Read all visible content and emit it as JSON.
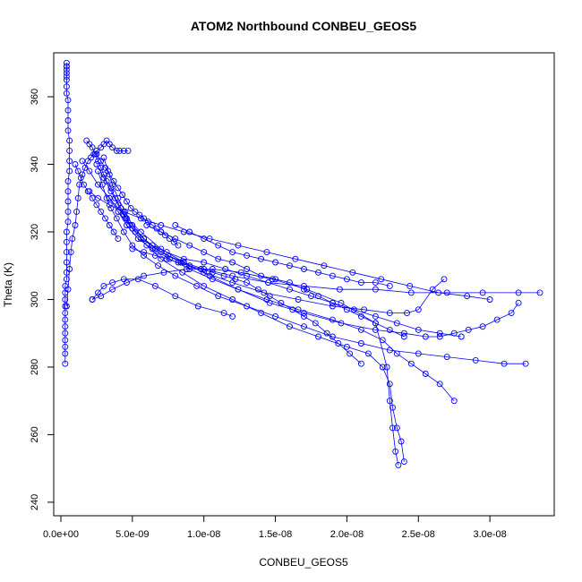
{
  "chart_data": {
    "type": "line",
    "title": "ATOM2 Northbound CONBEU_GEOS5",
    "xlabel": "CONBEU_GEOS5",
    "ylabel": "Theta (K)",
    "xlim": [
      -5e-10,
      3.45e-08
    ],
    "ylim": [
      236,
      373
    ],
    "x_ticks": [
      {
        "value": 0,
        "label": "0.0e+00"
      },
      {
        "value": 5e-09,
        "label": "5.0e-09"
      },
      {
        "value": 1e-08,
        "label": "1.0e-08"
      },
      {
        "value": 1.5e-08,
        "label": "1.5e-08"
      },
      {
        "value": 2e-08,
        "label": "2.0e-08"
      },
      {
        "value": 2.5e-08,
        "label": "2.5e-08"
      },
      {
        "value": 3e-08,
        "label": "3.0e-08"
      }
    ],
    "y_ticks": [
      {
        "value": 240,
        "label": "240"
      },
      {
        "value": 260,
        "label": "260"
      },
      {
        "value": 280,
        "label": "280"
      },
      {
        "value": 300,
        "label": "300"
      },
      {
        "value": 320,
        "label": "320"
      },
      {
        "value": 340,
        "label": "340"
      },
      {
        "value": 360,
        "label": "360"
      }
    ],
    "grid": false,
    "legend": "none",
    "color": "#0000ff",
    "marker": "open-circle",
    "series": [
      {
        "x": [
          3e-10,
          3e-10,
          3e-10,
          3e-10,
          3e-10,
          3e-10,
          3e-10,
          3e-10,
          3e-10,
          3e-10,
          3e-10,
          3e-10,
          4e-10,
          4e-10,
          4e-10,
          4e-10,
          4e-10,
          4e-10,
          5e-10,
          5e-10,
          5e-10,
          5e-10,
          5e-10,
          6e-10,
          6e-10,
          6e-10,
          6e-10,
          5e-10,
          5e-10,
          5e-10,
          5e-10,
          4e-10,
          4e-10,
          4e-10,
          4e-10,
          4e-10,
          4e-10,
          4e-10,
          4e-10,
          4e-10
        ],
        "y": [
          281,
          284,
          286,
          288,
          290,
          292,
          294,
          296,
          298,
          300,
          302,
          304,
          306,
          308,
          311,
          314,
          317,
          320,
          323,
          326,
          329,
          332,
          335,
          338,
          341,
          344,
          347,
          350,
          353,
          356,
          359,
          361,
          363,
          365,
          367,
          369,
          370,
          369,
          368,
          366
        ]
      },
      {
        "x": [
          4e-10,
          5e-10,
          6e-10,
          7e-10,
          8e-10,
          1e-09,
          1.1e-09,
          1.2e-09,
          1.3e-09,
          1.5e-09,
          1.7e-09,
          1.9e-09,
          2.1e-09,
          2.3e-09,
          2.5e-09,
          2.8e-09,
          3e-09,
          3.2e-09,
          3.4e-09,
          3.6e-09,
          3.9e-09,
          4.1e-09,
          4.4e-09,
          4.7e-09
        ],
        "y": [
          298,
          303,
          309,
          314,
          318,
          322,
          326,
          330,
          334,
          337,
          339,
          341,
          342,
          343,
          344,
          345,
          346,
          347,
          346,
          345,
          344,
          344,
          344,
          344
        ]
      },
      {
        "x": [
          1.8e-09,
          2e-09,
          2.2e-09,
          2.4e-09,
          2.6e-09,
          2.8e-09,
          3e-09,
          3.2e-09,
          3.5e-09,
          3.8e-09,
          4.2e-09,
          4.6e-09,
          5e-09,
          5.6e-09,
          6.4e-09,
          7.4e-09,
          8.6e-09,
          1e-08,
          1.15e-08,
          1.3e-08,
          1.45e-08,
          1.6e-08,
          1.75e-08,
          1.9e-08,
          2.05e-08,
          2.2e-08,
          2.35e-08,
          2.5e-08,
          2.65e-08,
          2.8e-08
        ],
        "y": [
          347,
          346,
          345,
          343,
          341,
          339,
          337,
          335,
          333,
          330,
          327,
          324,
          321,
          318,
          316,
          314,
          312,
          311,
          309,
          307,
          305,
          303,
          301,
          299,
          297,
          295,
          293,
          291,
          290,
          289
        ]
      },
      {
        "x": [
          2.5e-09,
          3e-09,
          3.5e-09,
          4e-09,
          4.5e-09,
          5.2e-09,
          6e-09,
          7e-09,
          8.5e-09,
          1e-08,
          1.2e-08,
          1.4e-08,
          1.6e-08,
          1.8e-08,
          2e-08,
          2.15e-08,
          2.25e-08,
          2.3e-08,
          2.32e-08,
          2.35e-08,
          2.38e-08,
          2.4e-08
        ],
        "y": [
          340,
          336,
          332,
          328,
          324,
          320,
          316,
          312,
          308,
          304,
          300,
          296,
          292,
          289,
          286,
          284,
          280,
          275,
          268,
          262,
          258,
          252
        ]
      },
      {
        "x": [
          3e-09,
          3.3e-09,
          3.6e-09,
          4e-09,
          4.5e-09,
          5e-09,
          5.8e-09,
          6.6e-09,
          7.5e-09,
          8.6e-09,
          1e-08,
          1.2e-08,
          1.45e-08,
          1.7e-08,
          1.95e-08,
          2.2e-08,
          2.45e-08,
          2.7e-08,
          2.95e-08,
          3.2e-08,
          3.35e-08
        ],
        "y": [
          342,
          338,
          334,
          330,
          326,
          322,
          318,
          315,
          313,
          311,
          309,
          307,
          305,
          304,
          303,
          303,
          302,
          302,
          302,
          302,
          302
        ]
      },
      {
        "x": [
          2.6e-09,
          2.9e-09,
          3.2e-09,
          3.5e-09,
          3.9e-09,
          4.4e-09,
          5e-09,
          5.8e-09,
          6.8e-09,
          8e-09,
          9.5e-09,
          1.1e-08,
          1.3e-08,
          1.5e-08,
          1.7e-08,
          1.9e-08,
          2.1e-08,
          2.3e-08,
          2.5e-08,
          2.7e-08,
          2.9e-08,
          3.1e-08,
          3.25e-08
        ],
        "y": [
          338,
          334,
          330,
          327,
          324,
          320,
          316,
          313,
          310,
          307,
          304,
          301,
          298,
          295,
          292,
          289,
          287,
          285,
          284,
          283,
          282,
          281,
          281
        ]
      },
      {
        "x": [
          4e-09,
          4.6e-09,
          5.4e-09,
          6.4e-09,
          7.6e-09,
          9e-09,
          1.06e-08,
          1.24e-08,
          1.44e-08,
          1.66e-08,
          1.9e-08,
          2.1e-08,
          2.25e-08,
          2.35e-08,
          2.45e-08,
          2.55e-08,
          2.65e-08,
          2.75e-08
        ],
        "y": [
          326,
          322,
          318,
          315,
          312,
          309,
          306,
          303,
          300,
          297,
          294,
          291,
          288,
          284,
          281,
          278,
          275,
          270
        ]
      },
      {
        "x": [
          3.4e-09,
          4e-09,
          4.8e-09,
          5.8e-09,
          7e-09,
          8.4e-09,
          1e-08,
          1.2e-08,
          1.42e-08,
          1.66e-08,
          1.9e-08,
          2.12e-08,
          2.3e-08,
          2.42e-08,
          2.5e-08,
          2.6e-08,
          2.68e-08
        ],
        "y": [
          330,
          326,
          322,
          318,
          314,
          311,
          308,
          305,
          302,
          300,
          298,
          297,
          296,
          296,
          297,
          303,
          306
        ]
      },
      {
        "x": [
          2.2e-09,
          2.6e-09,
          3e-09,
          3.6e-09,
          4.4e-09,
          5.4e-09,
          6.6e-09,
          8e-09,
          9.6e-09,
          1.14e-08,
          1.2e-08
        ],
        "y": [
          300,
          302,
          304,
          305,
          306,
          306,
          304,
          301,
          298,
          296,
          295
        ]
      },
      {
        "x": [
          2.2e-09,
          2.8e-09,
          3.6e-09,
          4.6e-09,
          5.8e-09,
          7.2e-09,
          8.8e-09,
          1.06e-08,
          1.26e-08,
          1.48e-08,
          1.72e-08,
          1.96e-08,
          2.2e-08,
          2.28e-08,
          2.3e-08,
          2.32e-08,
          2.34e-08,
          2.36e-08
        ],
        "y": [
          300,
          301,
          303,
          305,
          307,
          308,
          309,
          309,
          308,
          306,
          303,
          299,
          293,
          280,
          270,
          262,
          255,
          251
        ]
      },
      {
        "x": [
          2.5e-09,
          2.8e-09,
          3.1e-09,
          3.4e-09,
          3.7e-09,
          4e-09,
          4.3e-09,
          4.6e-09,
          4.9e-09,
          5.2e-09,
          5.5e-09,
          5.8e-09,
          6.1e-09,
          6.4e-09,
          6.7e-09,
          7e-09,
          7.3e-09,
          7.6e-09,
          7.9e-09,
          8.2e-09
        ],
        "y": [
          343,
          341,
          339,
          337,
          335,
          333,
          331,
          329,
          327,
          326,
          325,
          324,
          323,
          322,
          321,
          320,
          319,
          318,
          317,
          316
        ]
      },
      {
        "x": [
          6e-09,
          7e-09,
          8e-09,
          9e-09,
          1e-08,
          1.1e-08,
          1.2e-08,
          1.3e-08,
          1.4e-08,
          1.5e-08,
          1.6e-08,
          1.7e-08,
          1.8e-08,
          1.9e-08,
          2e-08,
          2.1e-08,
          2.2e-08,
          2.3e-08,
          2.4e-08
        ],
        "y": [
          322,
          320,
          318,
          316,
          314,
          312,
          311,
          309,
          307,
          306,
          305,
          303,
          301,
          299,
          297,
          295,
          293,
          291,
          289
        ]
      },
      {
        "x": [
          5e-09,
          5.8e-09,
          6.6e-09,
          7.4e-09,
          8.2e-09,
          9e-09,
          9.8e-09,
          1.06e-08,
          1.14e-08,
          1.22e-08,
          1.3e-08,
          1.38e-08,
          1.46e-08,
          1.54e-08,
          1.62e-08,
          1.7e-08,
          1.78e-08,
          1.86e-08,
          1.94e-08,
          2.02e-08,
          2.1e-08
        ],
        "y": [
          315,
          314,
          313,
          312,
          311,
          310,
          309,
          308,
          307,
          306,
          305,
          303,
          301,
          299,
          297,
          295,
          293,
          290,
          287,
          284,
          281
        ]
      },
      {
        "x": [
          1e-09,
          1.2e-09,
          1.4e-09,
          1.6e-09,
          1.9e-09,
          2.2e-09,
          2.5e-09,
          2.8e-09,
          3.1e-09,
          3.4e-09,
          3.7e-09,
          4e-09
        ],
        "y": [
          340,
          338,
          336,
          334,
          332,
          330,
          328,
          326,
          324,
          322,
          320,
          318
        ]
      },
      {
        "x": [
          8e-09,
          9e-09,
          1e-08,
          1.1e-08,
          1.2e-08,
          1.3e-08,
          1.4e-08,
          1.5e-08,
          1.6e-08,
          1.7e-08,
          1.8e-08,
          1.9e-08,
          2e-08,
          2.1e-08,
          2.2e-08,
          2.3e-08
        ],
        "y": [
          322,
          320,
          318,
          316,
          314,
          313,
          312,
          311,
          310,
          309,
          308,
          307,
          306,
          305,
          305,
          304
        ]
      },
      {
        "x": [
          2e-09,
          2.6e-09,
          3.4e-09,
          4.4e-09,
          5.6e-09,
          7e-09,
          8.6e-09,
          1.04e-08,
          1.24e-08,
          1.44e-08,
          1.64e-08,
          1.84e-08,
          2.04e-08,
          2.24e-08,
          2.44e-08,
          2.64e-08,
          2.84e-08,
          3e-08
        ],
        "y": [
          332,
          330,
          328,
          326,
          324,
          322,
          320,
          318,
          316,
          314,
          312,
          310,
          308,
          306,
          304,
          302,
          301,
          300
        ]
      },
      {
        "x": [
          1.5e-09,
          2e-09,
          2.6e-09,
          3.4e-09,
          4.4e-09,
          5.6e-09,
          7e-09,
          8.6e-09,
          1.04e-08,
          1.24e-08,
          1.46e-08,
          1.7e-08,
          1.96e-08,
          2.2e-08,
          2.4e-08,
          2.55e-08,
          2.65e-08,
          2.75e-08,
          2.85e-08,
          2.95e-08,
          3.05e-08,
          3.15e-08,
          3.2e-08
        ],
        "y": [
          341,
          338,
          334,
          330,
          325,
          320,
          315,
          311,
          307,
          303,
          299,
          296,
          293,
          291,
          290,
          289,
          289,
          290,
          291,
          292,
          294,
          296,
          299
        ]
      }
    ]
  }
}
